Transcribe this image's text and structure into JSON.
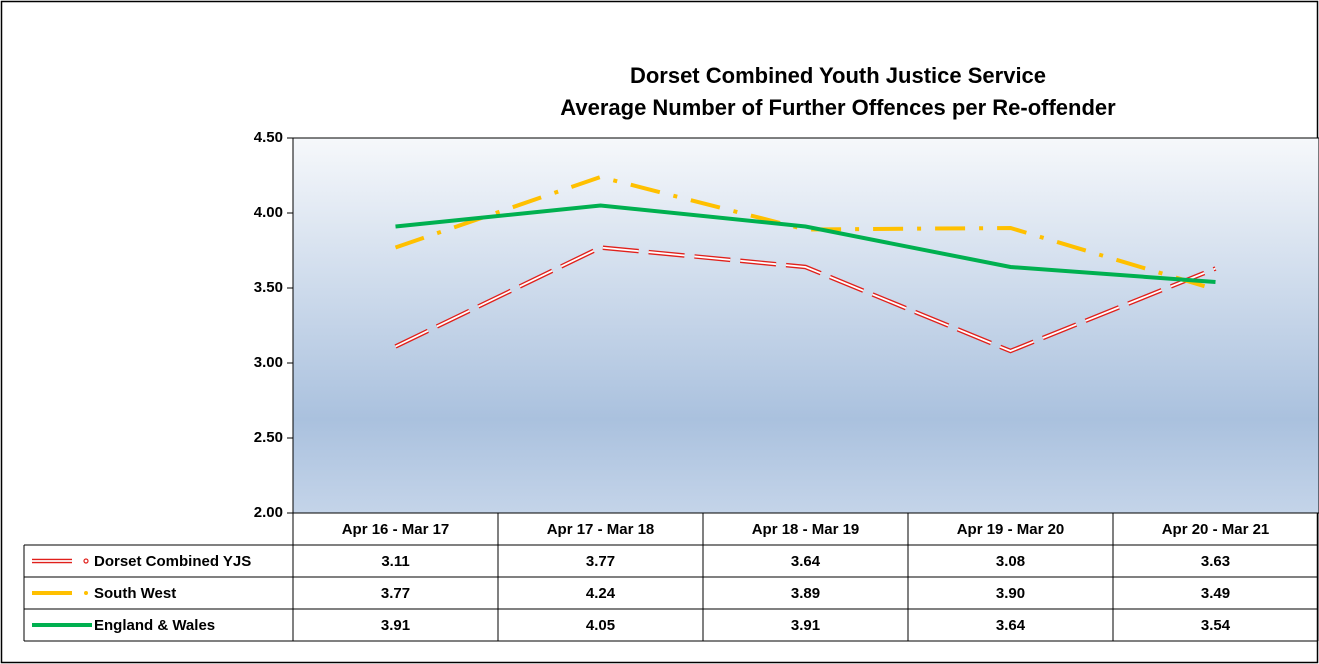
{
  "chart_data": {
    "type": "line",
    "title": [
      "Dorset Combined Youth Justice Service",
      "Average Number of Further Offences per Re-offender"
    ],
    "categories": [
      "Apr 16 - Mar 17",
      "Apr 17 - Mar 18",
      "Apr 18 - Mar 19",
      "Apr 19 - Mar 20",
      "Apr 20 - Mar 21"
    ],
    "series": [
      {
        "name": "Dorset Combined YJS",
        "color": "#e0201b",
        "style": "double-dash",
        "values": [
          3.11,
          3.77,
          3.64,
          3.08,
          3.63
        ],
        "value_labels": [
          "3.11",
          "3.77",
          "3.64",
          "3.08",
          "3.63"
        ]
      },
      {
        "name": "South West",
        "color": "#ffc000",
        "style": "dash-dot",
        "values": [
          3.77,
          4.24,
          3.89,
          3.9,
          3.49
        ],
        "value_labels": [
          "3.77",
          "4.24",
          "3.89",
          "3.90",
          "3.49"
        ]
      },
      {
        "name": "England & Wales",
        "color": "#00b050",
        "style": "solid",
        "values": [
          3.91,
          4.05,
          3.91,
          3.64,
          3.54
        ],
        "value_labels": [
          "3.91",
          "4.05",
          "3.91",
          "3.64",
          "3.54"
        ]
      }
    ],
    "ylim": [
      2,
      4.5
    ],
    "yticks": [
      {
        "value": 2,
        "label": "2.00"
      },
      {
        "value": 2.5,
        "label": "2.50"
      },
      {
        "value": 3,
        "label": "3.00"
      },
      {
        "value": 3.5,
        "label": "3.50"
      },
      {
        "value": 4,
        "label": "4.00"
      },
      {
        "value": 4.5,
        "label": "4.50"
      }
    ],
    "data_table": true
  }
}
